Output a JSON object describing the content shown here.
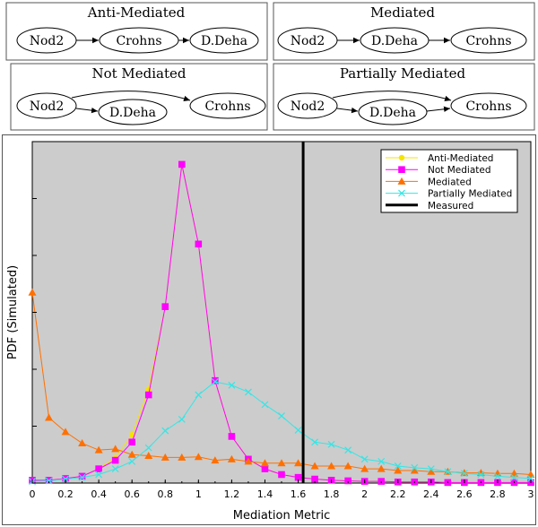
{
  "diagrams": [
    {
      "title": "Anti-Mediated",
      "nodes": [
        "Nod2",
        "Crohns",
        "D.Deha"
      ],
      "edges": [
        [
          "Nod2",
          "Crohns"
        ],
        [
          "Crohns",
          "D.Deha"
        ]
      ]
    },
    {
      "title": "Mediated",
      "nodes": [
        "Nod2",
        "D.Deha",
        "Crohns"
      ],
      "edges": [
        [
          "Nod2",
          "D.Deha"
        ],
        [
          "D.Deha",
          "Crohns"
        ]
      ]
    },
    {
      "title": "Not Mediated",
      "nodes": [
        "Nod2",
        "D.Deha",
        "Crohns"
      ],
      "edges": [
        [
          "Nod2",
          "D.Deha"
        ],
        [
          "Nod2",
          "Crohns"
        ]
      ]
    },
    {
      "title": "Partially Mediated",
      "nodes": [
        "Nod2",
        "D.Deha",
        "Crohns"
      ],
      "edges": [
        [
          "Nod2",
          "D.Deha"
        ],
        [
          "D.Deha",
          "Crohns"
        ],
        [
          "Nod2",
          "Crohns"
        ]
      ]
    }
  ],
  "chart_data": {
    "type": "line",
    "xlabel": "Mediation Metric",
    "ylabel": "PDF (Simulated)",
    "xlim": [
      0,
      3
    ],
    "ylim": [
      0,
      6
    ],
    "x_ticks": [
      "0",
      "0.2",
      "0.4",
      "0.6",
      "0.8",
      "1",
      "1.2",
      "1.4",
      "1.6",
      "1.8",
      "2",
      "2.2",
      "2.4",
      "2.6",
      "2.8",
      "3"
    ],
    "y_ticks_shown": false,
    "background": "#cccccc",
    "grid": false,
    "legend_position": "top-right",
    "x": [
      0,
      0.1,
      0.2,
      0.3,
      0.4,
      0.5,
      0.6,
      0.7,
      0.8,
      0.9,
      1.0,
      1.1,
      1.2,
      1.3,
      1.4,
      1.5,
      1.6,
      1.7,
      1.8,
      1.9,
      2.0,
      2.1,
      2.2,
      2.3,
      2.4,
      2.5,
      2.6,
      2.7,
      2.8,
      2.9,
      3.0
    ],
    "series": [
      {
        "name": "Anti-Mediated",
        "color": "#f5e400",
        "marker": "circle",
        "values": [
          0.05,
          0.05,
          0.08,
          0.12,
          0.25,
          0.45,
          0.85,
          1.65,
          3.1,
          5.6,
          4.2,
          1.8,
          0.82,
          0.42,
          0.25,
          0.15,
          0.1,
          0.07,
          0.05,
          0.04,
          0.03,
          0.03,
          0.02,
          0.02,
          0.02,
          0.01,
          0.01,
          0.01,
          0.01,
          0.01,
          0.01
        ]
      },
      {
        "name": "Not Mediated",
        "color": "#ff00ff",
        "marker": "square",
        "values": [
          0.05,
          0.05,
          0.08,
          0.12,
          0.25,
          0.4,
          0.72,
          1.55,
          3.1,
          5.6,
          4.2,
          1.8,
          0.82,
          0.42,
          0.25,
          0.15,
          0.1,
          0.07,
          0.05,
          0.04,
          0.03,
          0.03,
          0.02,
          0.02,
          0.02,
          0.01,
          0.01,
          0.01,
          0.01,
          0.01,
          0.01
        ]
      },
      {
        "name": "Mediated",
        "color": "#ff7000",
        "marker": "triangle",
        "values": [
          3.35,
          1.15,
          0.9,
          0.7,
          0.58,
          0.6,
          0.5,
          0.48,
          0.45,
          0.45,
          0.46,
          0.4,
          0.42,
          0.38,
          0.35,
          0.35,
          0.35,
          0.3,
          0.3,
          0.3,
          0.25,
          0.25,
          0.22,
          0.22,
          0.2,
          0.2,
          0.18,
          0.18,
          0.17,
          0.17,
          0.15
        ]
      },
      {
        "name": "Partially Mediated",
        "color": "#33e6e6",
        "marker": "x",
        "values": [
          0.03,
          0.04,
          0.07,
          0.1,
          0.15,
          0.25,
          0.38,
          0.62,
          0.92,
          1.12,
          1.55,
          1.78,
          1.72,
          1.6,
          1.38,
          1.18,
          0.93,
          0.72,
          0.68,
          0.58,
          0.42,
          0.38,
          0.3,
          0.27,
          0.25,
          0.2,
          0.17,
          0.15,
          0.12,
          0.1,
          0.08
        ]
      }
    ],
    "measured": {
      "name": "Measured",
      "x": 1.63,
      "color": "#000000"
    }
  }
}
